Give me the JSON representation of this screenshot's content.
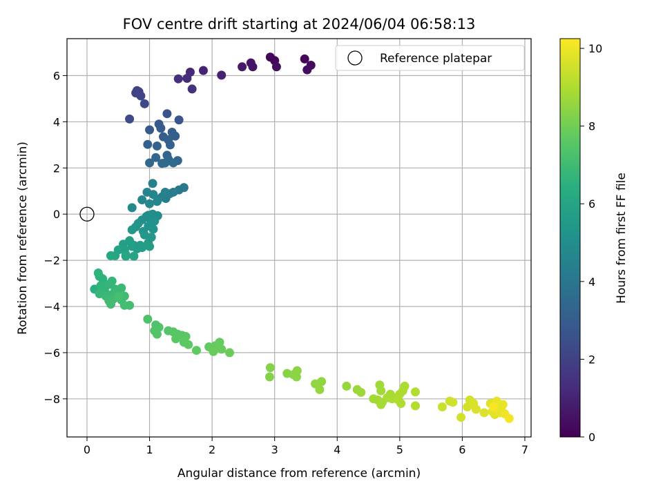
{
  "chart_data": {
    "type": "scatter",
    "title": "FOV centre drift starting at 2024/06/04 06:58:13",
    "xlabel": "Angular distance from reference (arcmin)",
    "ylabel": "Rotation from reference (arcmin)",
    "xlim": [
      -0.32,
      7.1
    ],
    "ylim": [
      -9.65,
      7.6
    ],
    "xticks": [
      0,
      1,
      2,
      3,
      4,
      5,
      6,
      7
    ],
    "yticks": [
      -8,
      -6,
      -4,
      -2,
      0,
      2,
      4,
      6
    ],
    "grid": true,
    "legend": {
      "label": "Reference platepar",
      "location": "top-right"
    },
    "reference_point": {
      "x": 0,
      "y": 0
    },
    "colorbar": {
      "label": "Hours from first FF file",
      "colormap": "viridis",
      "range": [
        0,
        10.25
      ],
      "ticks": [
        0,
        2,
        4,
        6,
        8,
        10
      ]
    },
    "points": [
      [
        2.93,
        6.8,
        0.15
      ],
      [
        3.0,
        6.65,
        0.2
      ],
      [
        3.48,
        6.72,
        0.1
      ],
      [
        3.58,
        6.45,
        0.25
      ],
      [
        3.52,
        6.25,
        0.3
      ],
      [
        3.03,
        6.38,
        0.4
      ],
      [
        2.62,
        6.55,
        0.55
      ],
      [
        2.65,
        6.38,
        0.6
      ],
      [
        2.48,
        6.38,
        0.7
      ],
      [
        2.15,
        6.02,
        0.95
      ],
      [
        1.86,
        6.22,
        1.0
      ],
      [
        1.65,
        6.15,
        1.15
      ],
      [
        1.6,
        5.88,
        1.25
      ],
      [
        1.46,
        5.86,
        1.35
      ],
      [
        1.68,
        5.42,
        1.45
      ],
      [
        0.8,
        5.35,
        1.9
      ],
      [
        0.83,
        5.3,
        1.95
      ],
      [
        0.78,
        5.25,
        2.0
      ],
      [
        0.86,
        5.12,
        2.05
      ],
      [
        0.92,
        4.78,
        2.2
      ],
      [
        0.68,
        4.12,
        2.35
      ],
      [
        1.28,
        4.35,
        2.6
      ],
      [
        1.47,
        4.08,
        2.7
      ],
      [
        1.15,
        3.9,
        2.85
      ],
      [
        1.0,
        3.65,
        2.9
      ],
      [
        1.18,
        3.72,
        2.95
      ],
      [
        1.36,
        3.55,
        3.0
      ],
      [
        1.41,
        3.38,
        3.05
      ],
      [
        1.22,
        3.35,
        3.05
      ],
      [
        1.3,
        3.22,
        3.1
      ],
      [
        0.97,
        3.02,
        3.15
      ],
      [
        1.12,
        2.95,
        3.2
      ],
      [
        1.33,
        3.0,
        3.2
      ],
      [
        1.28,
        2.55,
        3.3
      ],
      [
        1.1,
        2.45,
        3.35
      ],
      [
        1.3,
        2.38,
        3.35
      ],
      [
        1.45,
        2.32,
        3.4
      ],
      [
        1.2,
        2.2,
        3.45
      ],
      [
        1.0,
        2.22,
        3.5
      ],
      [
        1.25,
        2.22,
        3.5
      ],
      [
        1.38,
        2.22,
        3.55
      ],
      [
        1.55,
        1.15,
        4.1
      ],
      [
        1.47,
        1.05,
        4.15
      ],
      [
        1.38,
        0.95,
        4.2
      ],
      [
        1.32,
        0.88,
        4.25
      ],
      [
        1.2,
        0.75,
        4.3
      ],
      [
        1.26,
        0.68,
        4.35
      ],
      [
        1.05,
        1.33,
        4.45
      ],
      [
        1.25,
        0.95,
        4.45
      ],
      [
        1.13,
        0.62,
        4.55
      ],
      [
        0.96,
        0.95,
        4.6
      ],
      [
        1.06,
        0.85,
        4.6
      ],
      [
        1.12,
        0.55,
        4.65
      ],
      [
        0.88,
        0.62,
        4.7
      ],
      [
        1.0,
        0.45,
        4.75
      ],
      [
        0.72,
        0.28,
        4.85
      ],
      [
        1.13,
        -0.07,
        4.9
      ],
      [
        0.98,
        -0.05,
        4.95
      ],
      [
        1.05,
        0.0,
        5.0
      ],
      [
        0.95,
        -0.1,
        5.0
      ],
      [
        0.88,
        -0.25,
        5.05
      ],
      [
        1.0,
        -0.18,
        5.1
      ],
      [
        0.82,
        -0.4,
        5.15
      ],
      [
        1.08,
        -0.3,
        5.15
      ],
      [
        0.98,
        -0.52,
        5.2
      ],
      [
        1.06,
        -0.65,
        5.25
      ],
      [
        0.9,
        -0.75,
        5.3
      ],
      [
        0.78,
        -0.55,
        5.35
      ],
      [
        0.72,
        -0.68,
        5.4
      ],
      [
        1.03,
        -1.0,
        5.4
      ],
      [
        0.92,
        -0.9,
        5.45
      ],
      [
        0.98,
        -1.25,
        5.5
      ],
      [
        0.85,
        -1.35,
        5.55
      ],
      [
        0.75,
        -1.35,
        5.55
      ],
      [
        0.8,
        -1.5,
        5.6
      ],
      [
        0.88,
        -1.45,
        5.6
      ],
      [
        1.0,
        -1.4,
        5.65
      ],
      [
        0.58,
        -1.3,
        5.7
      ],
      [
        0.68,
        -1.15,
        5.75
      ],
      [
        0.72,
        -1.4,
        5.75
      ],
      [
        0.6,
        -1.55,
        5.8
      ],
      [
        0.5,
        -1.55,
        5.85
      ],
      [
        0.62,
        -1.75,
        5.9
      ],
      [
        0.75,
        -1.82,
        5.95
      ],
      [
        0.45,
        -1.8,
        6.0
      ],
      [
        0.62,
        -1.82,
        6.05
      ],
      [
        0.38,
        -1.8,
        6.1
      ],
      [
        0.12,
        -3.25,
        6.4
      ],
      [
        0.2,
        -2.7,
        6.5
      ],
      [
        0.25,
        -2.8,
        6.55
      ],
      [
        0.18,
        -2.55,
        6.6
      ],
      [
        0.22,
        -3.1,
        6.65
      ],
      [
        0.28,
        -3.3,
        6.7
      ],
      [
        0.34,
        -3.05,
        6.7
      ],
      [
        0.4,
        -2.9,
        6.75
      ],
      [
        0.45,
        -3.25,
        6.8
      ],
      [
        0.2,
        -3.45,
        6.8
      ],
      [
        0.3,
        -3.55,
        6.85
      ],
      [
        0.38,
        -3.5,
        6.85
      ],
      [
        0.48,
        -3.35,
        6.9
      ],
      [
        0.55,
        -3.2,
        6.9
      ],
      [
        0.35,
        -3.75,
        6.95
      ],
      [
        0.42,
        -3.68,
        6.95
      ],
      [
        0.5,
        -3.55,
        7.0
      ],
      [
        0.6,
        -3.55,
        7.0
      ],
      [
        0.55,
        -3.72,
        7.0
      ],
      [
        0.38,
        -3.9,
        7.05
      ],
      [
        0.6,
        -3.95,
        7.1
      ],
      [
        0.68,
        -3.95,
        7.1
      ],
      [
        0.5,
        -3.6,
        7.15
      ],
      [
        0.97,
        -4.55,
        7.3
      ],
      [
        1.1,
        -4.8,
        7.35
      ],
      [
        1.15,
        -4.9,
        7.35
      ],
      [
        1.08,
        -5.05,
        7.4
      ],
      [
        1.12,
        -5.2,
        7.4
      ],
      [
        1.3,
        -5.05,
        7.45
      ],
      [
        1.38,
        -5.1,
        7.5
      ],
      [
        1.45,
        -5.2,
        7.5
      ],
      [
        1.52,
        -5.25,
        7.55
      ],
      [
        1.42,
        -5.4,
        7.55
      ],
      [
        1.58,
        -5.3,
        7.6
      ],
      [
        1.55,
        -5.55,
        7.6
      ],
      [
        1.62,
        -5.65,
        7.65
      ],
      [
        1.75,
        -5.9,
        7.7
      ],
      [
        1.95,
        -5.75,
        7.75
      ],
      [
        2.05,
        -5.7,
        7.8
      ],
      [
        2.12,
        -5.55,
        7.8
      ],
      [
        2.02,
        -5.95,
        7.85
      ],
      [
        2.15,
        -5.85,
        7.85
      ],
      [
        2.28,
        -6.0,
        7.9
      ],
      [
        2.93,
        -6.65,
        8.3
      ],
      [
        2.92,
        -7.05,
        8.3
      ],
      [
        3.2,
        -6.9,
        8.35
      ],
      [
        3.3,
        -6.95,
        8.4
      ],
      [
        3.36,
        -6.78,
        8.4
      ],
      [
        3.35,
        -7.05,
        8.4
      ],
      [
        3.65,
        -7.35,
        8.5
      ],
      [
        3.75,
        -7.25,
        8.5
      ],
      [
        3.72,
        -7.6,
        8.55
      ],
      [
        4.15,
        -7.45,
        8.6
      ],
      [
        4.32,
        -7.6,
        8.65
      ],
      [
        4.38,
        -7.72,
        8.7
      ],
      [
        4.68,
        -7.4,
        8.75
      ],
      [
        4.7,
        -7.65,
        8.75
      ],
      [
        4.58,
        -8.0,
        8.8
      ],
      [
        4.65,
        -8.05,
        8.8
      ],
      [
        4.72,
        -8.15,
        8.85
      ],
      [
        4.7,
        -8.25,
        8.85
      ],
      [
        4.85,
        -7.8,
        8.85
      ],
      [
        4.92,
        -7.95,
        8.9
      ],
      [
        4.8,
        -7.95,
        8.9
      ],
      [
        4.88,
        -8.0,
        8.9
      ],
      [
        5.0,
        -7.8,
        8.95
      ],
      [
        5.05,
        -7.65,
        8.95
      ],
      [
        5.08,
        -7.45,
        8.95
      ],
      [
        4.98,
        -8.05,
        9.0
      ],
      [
        5.02,
        -8.2,
        9.0
      ],
      [
        5.25,
        -7.7,
        9.05
      ],
      [
        5.25,
        -8.3,
        9.05
      ],
      [
        5.68,
        -8.35,
        9.4
      ],
      [
        5.8,
        -8.1,
        9.5
      ],
      [
        5.85,
        -8.15,
        9.5
      ],
      [
        5.98,
        -8.8,
        9.55
      ],
      [
        6.08,
        -8.35,
        9.6
      ],
      [
        6.12,
        -8.05,
        9.6
      ],
      [
        6.18,
        -8.2,
        9.65
      ],
      [
        6.22,
        -8.45,
        9.65
      ],
      [
        6.35,
        -8.6,
        9.7
      ],
      [
        6.45,
        -8.2,
        9.75
      ],
      [
        6.48,
        -8.55,
        9.8
      ],
      [
        6.52,
        -8.68,
        9.8
      ],
      [
        6.55,
        -8.45,
        9.85
      ],
      [
        6.58,
        -8.25,
        9.85
      ],
      [
        6.6,
        -8.6,
        9.9
      ],
      [
        6.62,
        -8.4,
        9.9
      ],
      [
        6.65,
        -8.25,
        9.95
      ],
      [
        6.55,
        -8.1,
        9.95
      ],
      [
        6.68,
        -8.65,
        10.0
      ],
      [
        6.75,
        -8.85,
        10.1
      ],
      [
        6.5,
        -8.35,
        10.15
      ]
    ]
  }
}
